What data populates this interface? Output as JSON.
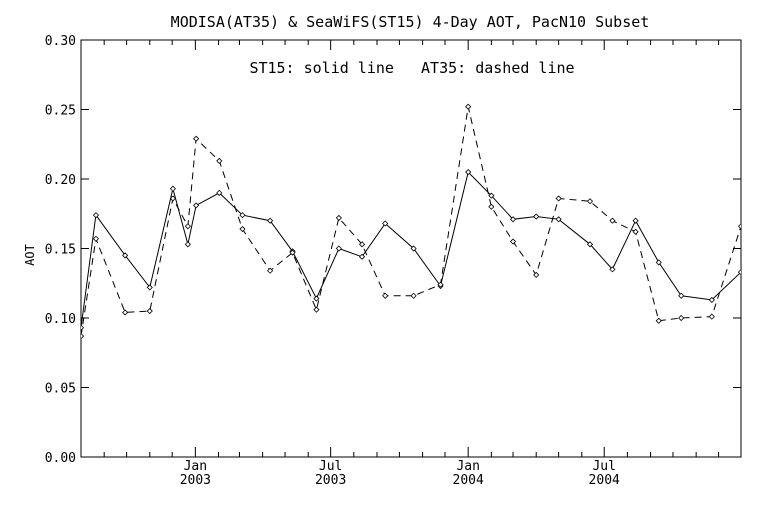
{
  "chart_data": {
    "type": "line",
    "title": "MODISA(AT35) & SeaWiFS(ST15) 4-Day AOT, PacN10 Subset",
    "legend_note": "ST15: solid line   AT35: dashed line",
    "xlabel": "",
    "ylabel": "AOT",
    "x_range": [
      "2002-08-01",
      "2004-12-31"
    ],
    "ylim": [
      0.0,
      0.3
    ],
    "y_ticks": [
      0.0,
      0.05,
      0.1,
      0.15,
      0.2,
      0.25,
      0.3
    ],
    "y_tick_labels": [
      "0.00",
      "0.05",
      "0.10",
      "0.15",
      "0.20",
      "0.25",
      "0.30"
    ],
    "x_ticks": [
      {
        "date": "2003-01-01",
        "label1": "Jan",
        "label2": "2003"
      },
      {
        "date": "2003-07-01",
        "label1": "Jul",
        "label2": "2003"
      },
      {
        "date": "2004-01-01",
        "label1": "Jan",
        "label2": "2004"
      },
      {
        "date": "2004-07-01",
        "label1": "Jul",
        "label2": "2004"
      }
    ],
    "x_minor_ticks": [
      "2002-09-01",
      "2002-10-01",
      "2002-11-01",
      "2002-12-01",
      "2003-02-01",
      "2003-03-01",
      "2003-04-01",
      "2003-05-01",
      "2003-06-01",
      "2003-08-01",
      "2003-09-01",
      "2003-10-01",
      "2003-11-01",
      "2003-12-01",
      "2004-02-01",
      "2004-03-01",
      "2004-04-01",
      "2004-05-01",
      "2004-06-01",
      "2004-08-01",
      "2004-09-01",
      "2004-10-01",
      "2004-11-01",
      "2004-12-01"
    ],
    "grid": false,
    "series": [
      {
        "name": "ST15",
        "style": "solid",
        "points": [
          [
            "2002-08-01",
            0.093
          ],
          [
            "2002-08-21",
            0.174
          ],
          [
            "2002-09-29",
            0.145
          ],
          [
            "2002-11-01",
            0.122
          ],
          [
            "2002-12-02",
            0.193
          ],
          [
            "2002-12-22",
            0.153
          ],
          [
            "2003-01-02",
            0.181
          ],
          [
            "2003-02-02",
            0.19
          ],
          [
            "2003-03-05",
            0.174
          ],
          [
            "2003-04-11",
            0.17
          ],
          [
            "2003-05-11",
            0.148
          ],
          [
            "2003-06-12",
            0.114
          ],
          [
            "2003-07-12",
            0.15
          ],
          [
            "2003-08-12",
            0.144
          ],
          [
            "2003-09-12",
            0.168
          ],
          [
            "2003-10-20",
            0.15
          ],
          [
            "2003-11-25",
            0.123
          ],
          [
            "2004-01-01",
            0.205
          ],
          [
            "2004-02-01",
            0.188
          ],
          [
            "2004-03-01",
            0.171
          ],
          [
            "2004-04-01",
            0.173
          ],
          [
            "2004-05-01",
            0.171
          ],
          [
            "2004-06-12",
            0.153
          ],
          [
            "2004-07-12",
            0.135
          ],
          [
            "2004-08-12",
            0.17
          ],
          [
            "2004-09-12",
            0.14
          ],
          [
            "2004-10-12",
            0.116
          ],
          [
            "2004-11-22",
            0.113
          ],
          [
            "2004-12-31",
            0.133
          ]
        ]
      },
      {
        "name": "AT35",
        "style": "dashed",
        "points": [
          [
            "2002-08-01",
            0.087
          ],
          [
            "2002-08-21",
            0.157
          ],
          [
            "2002-09-29",
            0.104
          ],
          [
            "2002-11-01",
            0.105
          ],
          [
            "2002-12-02",
            0.186
          ],
          [
            "2002-12-22",
            0.166
          ],
          [
            "2003-01-02",
            0.229
          ],
          [
            "2003-02-02",
            0.213
          ],
          [
            "2003-03-05",
            0.164
          ],
          [
            "2003-04-11",
            0.134
          ],
          [
            "2003-05-11",
            0.147
          ],
          [
            "2003-06-12",
            0.106
          ],
          [
            "2003-07-12",
            0.172
          ],
          [
            "2003-08-12",
            0.153
          ],
          [
            "2003-09-12",
            0.116
          ],
          [
            "2003-10-20",
            0.116
          ],
          [
            "2003-11-25",
            0.124
          ],
          [
            "2004-01-01",
            0.252
          ],
          [
            "2004-02-01",
            0.18
          ],
          [
            "2004-03-01",
            0.155
          ],
          [
            "2004-04-01",
            0.131
          ],
          [
            "2004-05-01",
            0.186
          ],
          [
            "2004-06-12",
            0.184
          ],
          [
            "2004-07-12",
            0.17
          ],
          [
            "2004-08-12",
            0.162
          ],
          [
            "2004-09-12",
            0.098
          ],
          [
            "2004-10-12",
            0.1
          ],
          [
            "2004-11-22",
            0.101
          ],
          [
            "2004-12-31",
            0.166
          ]
        ]
      }
    ]
  }
}
